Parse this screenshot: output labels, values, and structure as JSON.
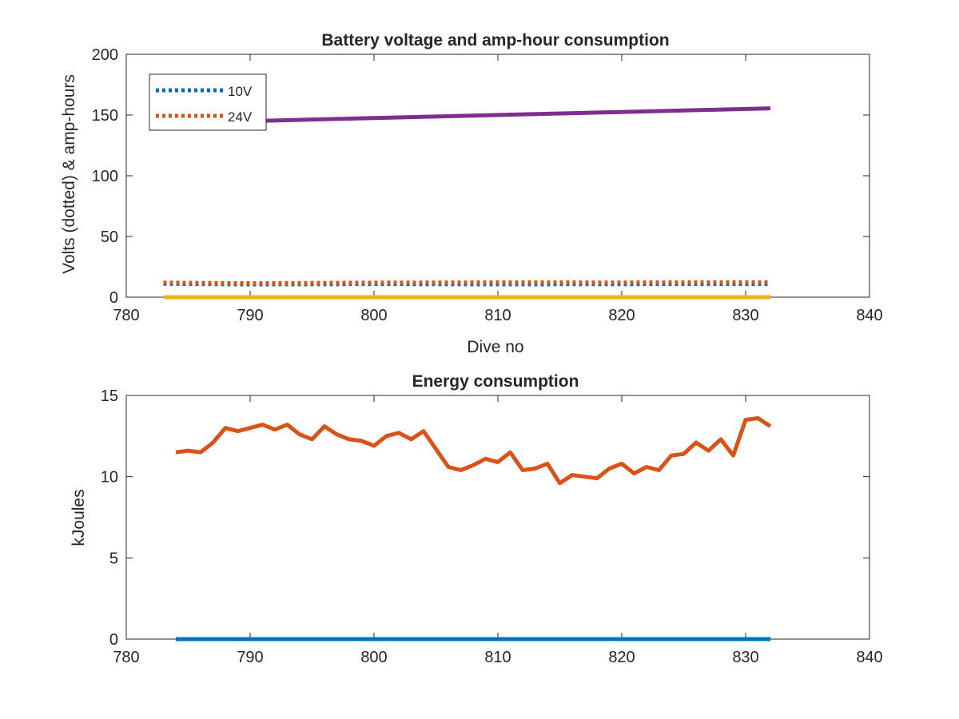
{
  "chart_data": [
    {
      "type": "line",
      "title": "Battery voltage and amp-hour consumption",
      "xlabel": "Dive no",
      "ylabel": "Volts (dotted) & amp-hours",
      "xlim": [
        780,
        840
      ],
      "ylim": [
        0,
        200
      ],
      "xticks": [
        "780",
        "790",
        "800",
        "810",
        "820",
        "830",
        "840"
      ],
      "yticks": [
        "0",
        "50",
        "100",
        "150",
        "200"
      ],
      "grid": false,
      "legend_position": "top-left",
      "series": [
        {
          "name": "10V",
          "style": "dotted",
          "color": "#0072BD",
          "x": [
            783,
            790,
            800,
            810,
            820,
            832
          ],
          "y": [
            11,
            10.5,
            10.8,
            10.6,
            10.7,
            10.8
          ]
        },
        {
          "name": "24V",
          "style": "dotted",
          "color": "#D95319",
          "x": [
            783,
            790,
            800,
            810,
            820,
            832
          ],
          "y": [
            12,
            11.5,
            12,
            12.2,
            12.1,
            12.4
          ]
        },
        {
          "style": "solid",
          "color": "#7E2F8E",
          "x": [
            790,
            832
          ],
          "y": [
            145,
            155.5
          ]
        },
        {
          "style": "solid",
          "color": "#EDB120",
          "x": [
            783,
            832
          ],
          "y": [
            0,
            0
          ]
        }
      ]
    },
    {
      "type": "line",
      "title": "Energy consumption",
      "xlabel": "",
      "ylabel": "kJoules",
      "xlim": [
        780,
        840
      ],
      "ylim": [
        0,
        15
      ],
      "xticks": [
        "780",
        "790",
        "800",
        "810",
        "820",
        "830",
        "840"
      ],
      "yticks": [
        "0",
        "5",
        "10",
        "15"
      ],
      "grid": false,
      "series": [
        {
          "style": "solid",
          "color": "#D95319",
          "x": [
            784,
            785,
            786,
            787,
            788,
            789,
            790,
            791,
            792,
            793,
            794,
            795,
            796,
            797,
            798,
            799,
            800,
            801,
            802,
            803,
            804,
            805,
            806,
            807,
            808,
            809,
            810,
            811,
            812,
            813,
            814,
            815,
            816,
            817,
            818,
            819,
            820,
            821,
            822,
            823,
            824,
            825,
            826,
            827,
            828,
            829,
            830,
            831,
            832
          ],
          "y": [
            11.5,
            11.6,
            11.5,
            12.1,
            13.0,
            12.8,
            13.0,
            13.2,
            12.9,
            13.2,
            12.6,
            12.3,
            13.1,
            12.6,
            12.3,
            12.2,
            11.9,
            12.5,
            12.7,
            12.3,
            12.8,
            11.7,
            10.6,
            10.4,
            10.7,
            11.1,
            10.9,
            11.5,
            10.4,
            10.5,
            10.8,
            9.6,
            10.1,
            10.0,
            9.9,
            10.5,
            10.8,
            10.2,
            10.6,
            10.4,
            11.3,
            11.4,
            12.1,
            11.6,
            12.3,
            11.3,
            13.5,
            13.6,
            13.1
          ]
        },
        {
          "style": "solid",
          "color": "#0072BD",
          "x": [
            784,
            832
          ],
          "y": [
            0,
            0
          ]
        }
      ]
    }
  ]
}
